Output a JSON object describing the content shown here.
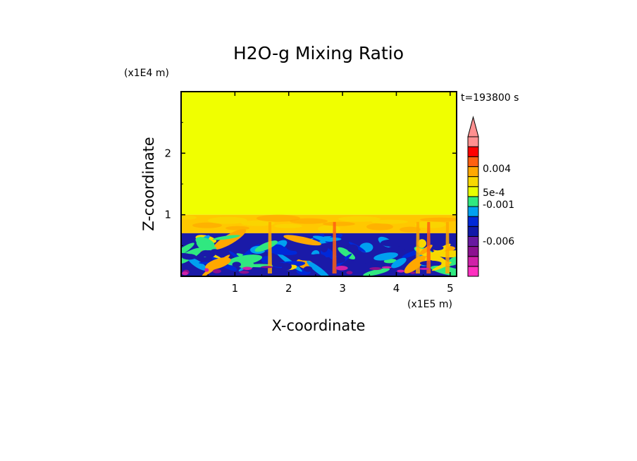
{
  "chart_data": {
    "type": "heatmap",
    "title": "H2O-g Mixing Ratio",
    "xlabel": "X-coordinate",
    "ylabel": "Z-coordinate",
    "x_unit": "(x1E5 m)",
    "y_unit": "(x1E4 m)",
    "time_label": "t=193800 s",
    "xlim": [
      0,
      5.12
    ],
    "ylim": [
      0,
      3.0
    ],
    "x_ticks": [
      "1",
      "2",
      "3",
      "4",
      "5"
    ],
    "y_ticks": [
      "1",
      "2"
    ],
    "colorbar": {
      "colors": [
        "#ff30c0",
        "#d020a8",
        "#8c1090",
        "#6818a0",
        "#1018a8",
        "#0028d8",
        "#00a0f0",
        "#30e880",
        "#e8ff00",
        "#f8d800",
        "#ffa800",
        "#ff6010",
        "#ff0000",
        "#ff9090"
      ],
      "tick_labels": [
        "0.004",
        "5e-4",
        "-0.001",
        "-0.006"
      ],
      "extend": "max"
    },
    "field": {
      "upper_layer": {
        "z_range": [
          1.0,
          3.0
        ],
        "color": "#f0ff00"
      },
      "transition_layer": {
        "z_range": [
          0.7,
          1.0
        ],
        "color": "#ffc800"
      },
      "lower_layer": {
        "z_range": [
          0.0,
          0.7
        ],
        "dominant_color": "#1a1aa8"
      }
    }
  }
}
